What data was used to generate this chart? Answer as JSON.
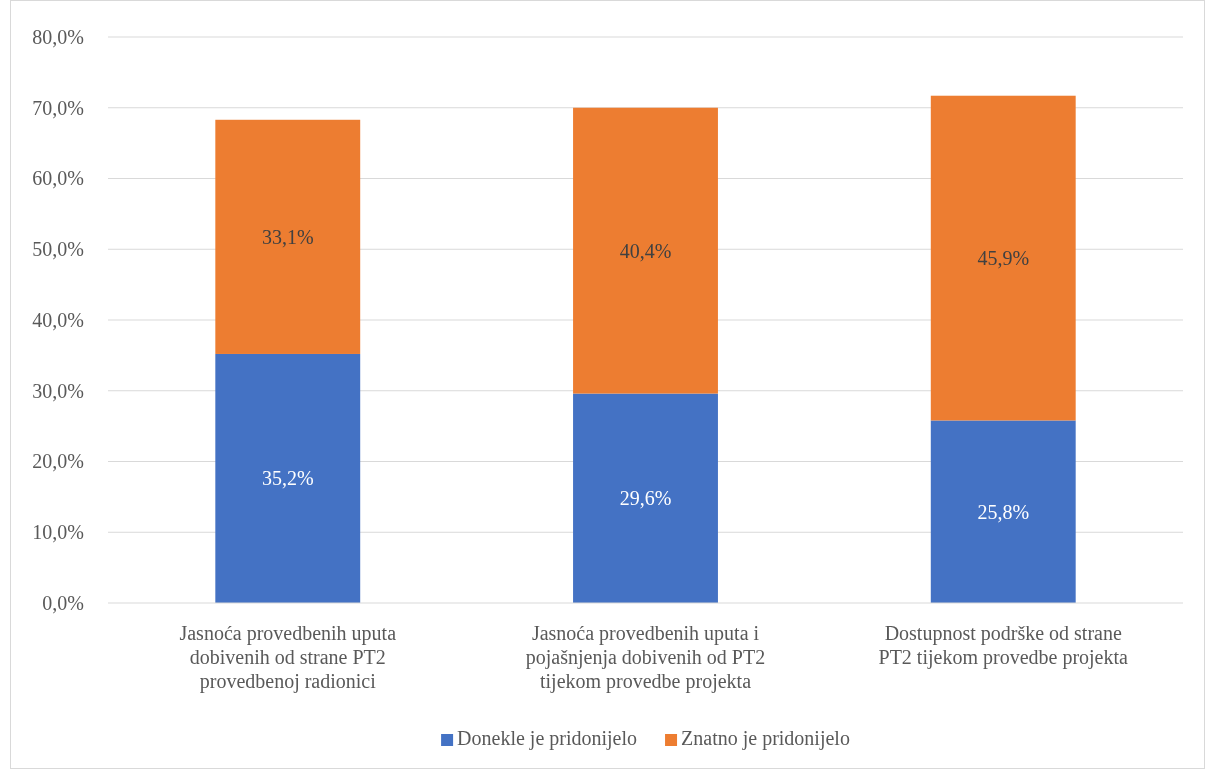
{
  "chart_data": {
    "type": "bar",
    "stacked": true,
    "categories": [
      "Jasnoća provedbenih uputa dobivenih od strane PT2 provedbenoj radionici",
      "Jasnoća provedbenih uputa i pojašnjenja dobivenih od PT2 tijekom provedbe projekta",
      "Dostupnost podrške od strane PT2 tijekom provedbe projekta"
    ],
    "series": [
      {
        "name": "Donekle je pridonijelo",
        "color": "#4472c4",
        "values": [
          35.2,
          29.6,
          25.8
        ],
        "value_labels": [
          "35,2%",
          "29,6%",
          "25,8%"
        ]
      },
      {
        "name": "Znatno je pridonijelo",
        "color": "#ed7d31",
        "values": [
          33.1,
          40.4,
          45.9
        ],
        "value_labels": [
          "33,1%",
          "40,4%",
          "45,9%"
        ]
      }
    ],
    "ylim": [
      0,
      80
    ],
    "yticks": [
      {
        "value": 0,
        "label": "0,0%"
      },
      {
        "value": 10,
        "label": "10,0%"
      },
      {
        "value": 20,
        "label": "20,0%"
      },
      {
        "value": 30,
        "label": "30,0%"
      },
      {
        "value": 40,
        "label": "40,0%"
      },
      {
        "value": 50,
        "label": "50,0%"
      },
      {
        "value": 60,
        "label": "60,0%"
      },
      {
        "value": 70,
        "label": "70,0%"
      },
      {
        "value": 80,
        "label": "80,0%"
      }
    ],
    "grid": "y",
    "legend": "bottom"
  }
}
